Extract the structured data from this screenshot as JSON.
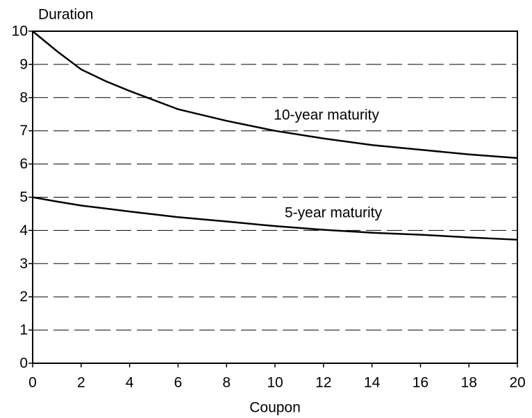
{
  "chart_data": {
    "type": "line",
    "y_label": "Duration",
    "x_label": "Coupon",
    "x": [
      0,
      1,
      2,
      3,
      4,
      6,
      8,
      10,
      12,
      14,
      16,
      18,
      20
    ],
    "series": [
      {
        "name": "10-year maturity",
        "color": "#000000",
        "values": [
          10,
          9.4,
          8.85,
          8.5,
          8.2,
          7.65,
          7.3,
          7.0,
          6.77,
          6.57,
          6.43,
          6.29,
          6.18
        ]
      },
      {
        "name": "5-year maturity",
        "color": "#000000",
        "values": [
          5.0,
          4.87,
          4.75,
          4.66,
          4.57,
          4.4,
          4.27,
          4.13,
          4.02,
          3.93,
          3.87,
          3.79,
          3.72
        ]
      }
    ],
    "xlim": [
      0,
      20
    ],
    "xticks": [
      0,
      2,
      4,
      6,
      8,
      10,
      12,
      14,
      16,
      18,
      20
    ],
    "ylim": [
      0,
      10
    ],
    "yticks": [
      0,
      1,
      2,
      3,
      4,
      5,
      6,
      7,
      8,
      9,
      10
    ],
    "grid": true
  }
}
